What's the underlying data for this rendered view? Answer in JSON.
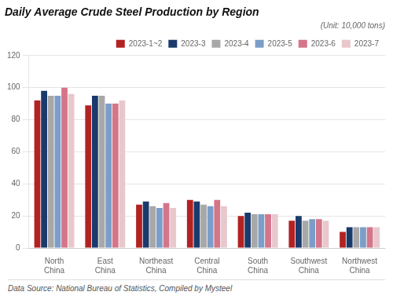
{
  "chart_data": {
    "type": "bar",
    "title": "Daily Average Crude Steel Production by Region",
    "subtitle": "(Unit: 10,000 tons)",
    "annotations": [
      "Data Source: National Bureau of Statistics, Compiled by Mysteel"
    ],
    "categories": [
      "North\nChina",
      "East\nChina",
      "Northeast\nChina",
      "Central\nChina",
      "South\nChina",
      "Southwest\nChina",
      "Northwest\nChina"
    ],
    "series": [
      {
        "name": "2023-1~2",
        "color": "#b22222",
        "values": [
          92,
          89,
          27,
          30,
          20,
          17,
          10
        ]
      },
      {
        "name": "2023-3",
        "color": "#1a3a6b",
        "values": [
          98,
          95,
          29,
          29,
          22,
          20,
          13
        ]
      },
      {
        "name": "2023-4",
        "color": "#a8a8a8",
        "values": [
          95,
          95,
          26,
          27,
          21,
          17,
          13
        ]
      },
      {
        "name": "2023-5",
        "color": "#7b9ec8",
        "values": [
          95,
          90,
          25,
          26,
          21,
          18,
          13
        ]
      },
      {
        "name": "2023-6",
        "color": "#d4758a",
        "values": [
          100,
          90,
          28,
          30,
          21,
          18,
          13
        ]
      },
      {
        "name": "2023-7",
        "color": "#e8c8cc",
        "values": [
          96,
          92,
          25,
          26,
          21,
          17,
          13
        ]
      }
    ],
    "ylim": [
      0,
      120
    ],
    "yticks": [
      0,
      20,
      40,
      60,
      80,
      100,
      120
    ],
    "grid": true,
    "legend": "upper right"
  }
}
